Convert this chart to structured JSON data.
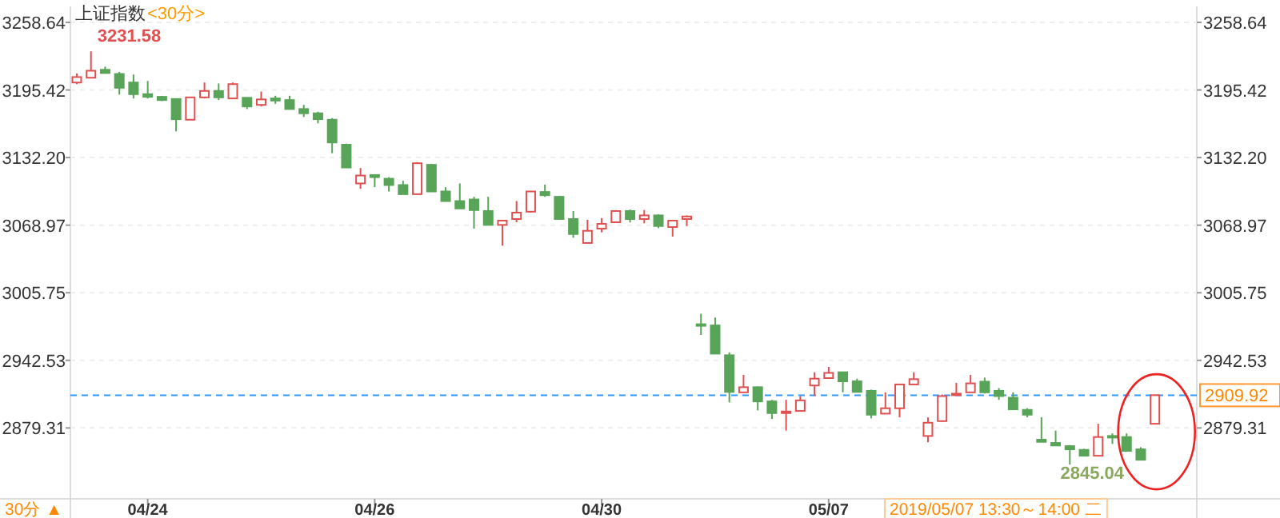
{
  "chart_data": {
    "type": "candlestick",
    "title": "上证指数",
    "subtitle": "<30分>",
    "categories": [
      null,
      null,
      null,
      null,
      null,
      "04/24",
      null,
      null,
      null,
      null,
      null,
      null,
      null,
      null,
      null,
      null,
      null,
      null,
      null,
      null,
      null,
      "04/26",
      null,
      null,
      null,
      null,
      null,
      null,
      null,
      null,
      null,
      null,
      null,
      null,
      null,
      null,
      null,
      "04/30",
      null,
      null,
      null,
      null,
      null,
      null,
      null,
      null,
      null,
      null,
      null,
      null,
      null,
      null,
      null,
      "05/07",
      null,
      null,
      null,
      null,
      null,
      null,
      null,
      null,
      null,
      null,
      null,
      null,
      null,
      null,
      null,
      null,
      null,
      null,
      null,
      null,
      null,
      null,
      null
    ],
    "ohlc": [
      [
        3202.4,
        3210.9,
        3200.9,
        3207.5
      ],
      [
        3206.9,
        3231.58,
        3206.9,
        3213.4
      ],
      [
        3214.3,
        3217.3,
        3211.3,
        3211.3
      ],
      [
        3210.4,
        3212.4,
        3191.1,
        3197.5
      ],
      [
        3202.4,
        3209.9,
        3187.5,
        3191.5
      ],
      [
        3191.5,
        3203.9,
        3187.5,
        3189.0
      ],
      [
        3189.0,
        3189.9,
        3185.0,
        3186.0
      ],
      [
        3187.0,
        3187.0,
        3156.7,
        3168.1
      ],
      [
        3167.6,
        3189.0,
        3167.6,
        3188.5
      ],
      [
        3188.5,
        3202.4,
        3187.5,
        3194.5
      ],
      [
        3194.5,
        3201.5,
        3186.0,
        3188.5
      ],
      [
        3187.5,
        3202.4,
        3187.5,
        3200.9
      ],
      [
        3188.1,
        3188.1,
        3177.6,
        3180.0
      ],
      [
        3181.5,
        3194.0,
        3180.0,
        3186.6
      ],
      [
        3187.5,
        3190.0,
        3182.5,
        3185.5
      ],
      [
        3186.0,
        3190.0,
        3177.6,
        3177.6
      ],
      [
        3177.6,
        3181.5,
        3170.2,
        3173.6
      ],
      [
        3173.6,
        3175.1,
        3164.2,
        3168.1
      ],
      [
        3167.6,
        3169.1,
        3136.3,
        3146.3
      ],
      [
        3144.2,
        3145.2,
        3122.9,
        3122.9
      ],
      [
        3108.0,
        3122.4,
        3103.0,
        3115.4
      ],
      [
        3115.9,
        3116.0,
        3104.5,
        3113.9
      ],
      [
        3112.4,
        3113.9,
        3100.5,
        3106.5
      ],
      [
        3106.5,
        3110.5,
        3098.0,
        3098.0
      ],
      [
        3098.0,
        3127.9,
        3098.0,
        3126.9
      ],
      [
        3125.4,
        3126.4,
        3100.5,
        3100.5
      ],
      [
        3100.5,
        3104.5,
        3091.5,
        3091.5
      ],
      [
        3091.5,
        3108.0,
        3084.6,
        3084.6
      ],
      [
        3093.0,
        3095.5,
        3065.7,
        3083.1
      ],
      [
        3082.2,
        3095.5,
        3069.2,
        3069.2
      ],
      [
        3069.2,
        3073.2,
        3049.8,
        3073.2
      ],
      [
        3074.7,
        3091.5,
        3071.7,
        3080.7
      ],
      [
        3081.6,
        3100.5,
        3080.7,
        3100.5
      ],
      [
        3100.0,
        3106.9,
        3095.5,
        3097.0
      ],
      [
        3095.5,
        3096.2,
        3074.7,
        3074.7
      ],
      [
        3074.7,
        3082.2,
        3057.2,
        3060.7
      ],
      [
        3052.3,
        3074.0,
        3052.3,
        3063.7
      ],
      [
        3065.7,
        3075.6,
        3062.2,
        3070.2
      ],
      [
        3071.7,
        3083.1,
        3071.7,
        3082.2
      ],
      [
        3082.2,
        3083.6,
        3071.5,
        3074.7
      ],
      [
        3074.7,
        3083.1,
        3070.7,
        3078.1
      ],
      [
        3078.1,
        3079.0,
        3066.2,
        3068.2
      ],
      [
        3067.2,
        3073.2,
        3058.3,
        3073.2
      ],
      [
        3074.7,
        3078.1,
        3068.2,
        3077.1
      ],
      [
        2976.3,
        2986.1,
        2966.3,
        2974.8
      ],
      [
        2975.2,
        2982.6,
        2948.8,
        2948.8
      ],
      [
        2947.3,
        2950.0,
        2903.2,
        2913.0
      ],
      [
        2912.6,
        2928.9,
        2912.6,
        2917.4
      ],
      [
        2917.4,
        2918.0,
        2895.7,
        2904.1
      ],
      [
        2904.1,
        2905.6,
        2887.7,
        2893.2
      ],
      [
        2893.7,
        2905.6,
        2876.8,
        2894.7
      ],
      [
        2895.2,
        2909.1,
        2895.2,
        2905.1
      ],
      [
        2919.0,
        2931.4,
        2909.1,
        2925.4
      ],
      [
        2925.9,
        2936.4,
        2925.9,
        2930.8
      ],
      [
        2931.4,
        2931.4,
        2912.6,
        2922.9
      ],
      [
        2922.9,
        2925.4,
        2913.0,
        2913.0
      ],
      [
        2914.0,
        2915.1,
        2888.3,
        2891.7
      ],
      [
        2892.7,
        2912.6,
        2892.7,
        2897.7
      ],
      [
        2897.7,
        2920.0,
        2889.2,
        2920.0
      ],
      [
        2920.0,
        2931.4,
        2920.0,
        2924.9
      ],
      [
        2871.8,
        2889.2,
        2865.9,
        2884.2
      ],
      [
        2885.7,
        2910.6,
        2885.2,
        2909.1
      ],
      [
        2909.9,
        2921.5,
        2909.9,
        2911.4
      ],
      [
        2912.6,
        2928.9,
        2912.6,
        2921.0
      ],
      [
        2922.6,
        2926.4,
        2911.5,
        2912.6
      ],
      [
        2914.0,
        2916.6,
        2905.6,
        2909.1
      ],
      [
        2907.6,
        2912.6,
        2896.7,
        2896.7
      ],
      [
        2896.2,
        2897.7,
        2889.2,
        2891.7
      ],
      [
        2868.3,
        2889.2,
        2866.3,
        2866.3
      ],
      [
        2865.3,
        2876.8,
        2862.9,
        2862.9
      ],
      [
        2862.3,
        2863.3,
        2845.04,
        2859.3
      ],
      [
        2858.8,
        2859.8,
        2853.3,
        2853.3
      ],
      [
        2853.3,
        2883.2,
        2853.3,
        2870.8
      ],
      [
        2871.8,
        2874.2,
        2864.4,
        2870.3
      ],
      [
        2870.8,
        2874.2,
        2857.8,
        2857.8
      ],
      [
        2859.3,
        2861.3,
        2849.5,
        2849.5
      ],
      [
        2883.2,
        2910.6,
        2883.2,
        2909.92
      ]
    ],
    "ylim": [
      2816,
      3273.6
    ],
    "yticks": [
      2879.31,
      2942.53,
      3005.75,
      3068.97,
      {
        "value": 3132.2,
        "label": "3132.20"
      },
      3195.42,
      3258.64
    ],
    "y2lim": [
      2816,
      3273.6
    ],
    "y2ticks": [
      2879.31,
      2942.53,
      3005.75,
      3068.97,
      {
        "value": 3132.2,
        "label": "3132.20"
      },
      3195.42,
      3258.64
    ],
    "grid": "y",
    "ref_lines": [
      {
        "axis": "y",
        "value": 2909.92,
        "label": "2909.92",
        "color": "#3399ff",
        "line_style": "dashed"
      }
    ],
    "annotations": [
      "3231.58",
      "2845.04",
      "2019/05/07 13:30～14:00 二",
      "30分 ▲"
    ]
  }
}
